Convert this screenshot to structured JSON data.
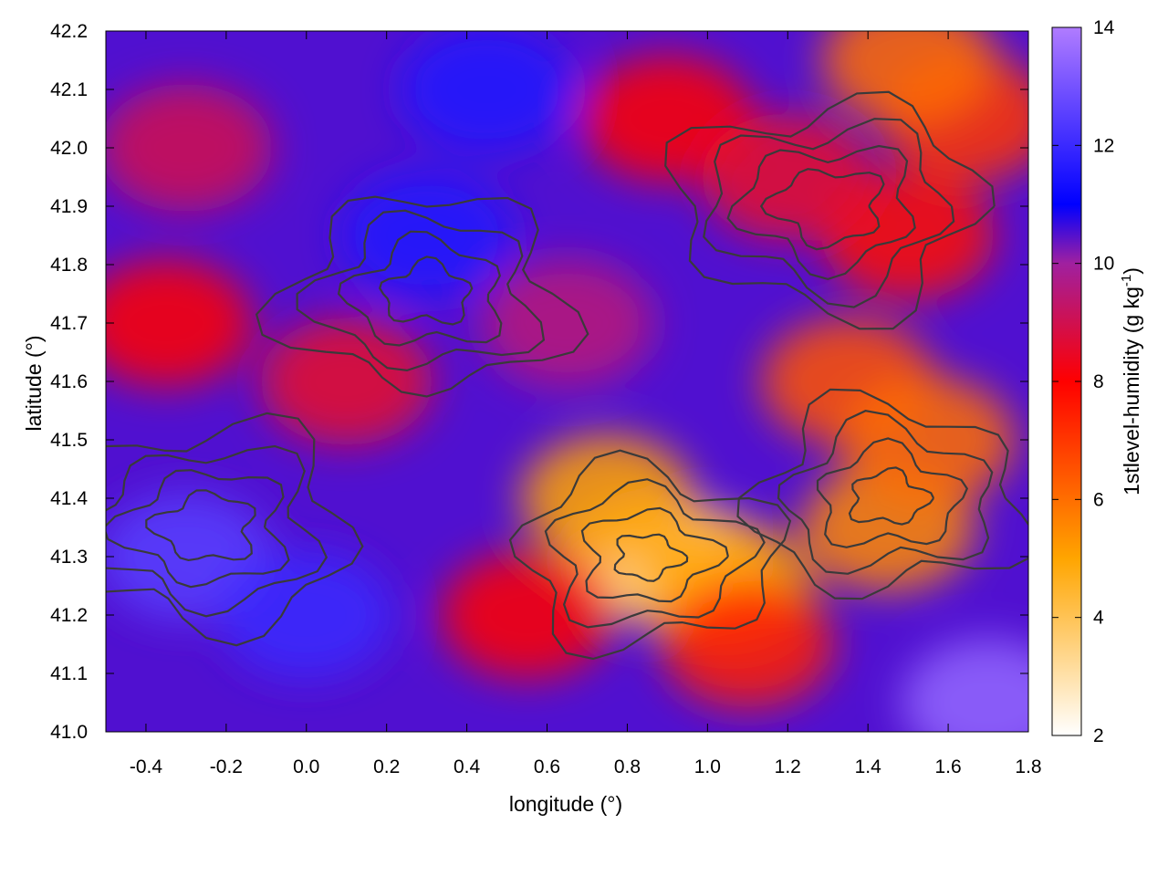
{
  "chart_data": {
    "type": "heatmap",
    "title": "",
    "xlabel": "longitude (°)",
    "ylabel": "latitude (°)",
    "xlim": [
      -0.5,
      1.8
    ],
    "ylim": [
      41.0,
      42.2
    ],
    "xticks": [
      -0.4,
      -0.2,
      0.0,
      0.2,
      0.4,
      0.6,
      0.8,
      1.0,
      1.2,
      1.4,
      1.6,
      1.8
    ],
    "xtick_labels": [
      "-0.4",
      "-0.2",
      "0.0",
      "0.2",
      "0.4",
      "0.6",
      "0.8",
      "1.0",
      "1.2",
      "1.4",
      "1.6",
      "1.8"
    ],
    "yticks": [
      41.0,
      41.1,
      41.2,
      41.3,
      41.4,
      41.5,
      41.6,
      41.7,
      41.8,
      41.9,
      42.0,
      42.1,
      42.2
    ],
    "ytick_labels": [
      "41.0",
      "41.1",
      "41.2",
      "41.3",
      "41.4",
      "41.5",
      "41.6",
      "41.7",
      "41.8",
      "41.9",
      "42.0",
      "42.1",
      "42.2"
    ],
    "colorbar": {
      "label": "1stlevel-humidity (g kg",
      "label_superscript": "-1",
      "label_suffix": ")",
      "range": [
        2,
        14
      ],
      "ticks": [
        2,
        4,
        6,
        8,
        10,
        12,
        14
      ],
      "tick_labels": [
        "2",
        "4",
        "6",
        "8",
        "10",
        "12",
        "14"
      ],
      "colormap": [
        {
          "value": 2,
          "color": "#ffffff"
        },
        {
          "value": 5,
          "color": "#ffa500"
        },
        {
          "value": 8,
          "color": "#ff0000"
        },
        {
          "value": 10,
          "color": "#a020a0"
        },
        {
          "value": 11,
          "color": "#0000ff"
        },
        {
          "value": 14,
          "color": "#b07cff"
        }
      ]
    },
    "contour_color": "#3a3a3a",
    "field_regions": [
      {
        "name": "background",
        "lon": 0.65,
        "lat": 41.6,
        "value": 10.5
      },
      {
        "lon": 0.85,
        "lat": 41.3,
        "value": 4
      },
      {
        "lon": 0.95,
        "lat": 41.28,
        "value": 3.5
      },
      {
        "lon": 0.75,
        "lat": 41.4,
        "value": 5
      },
      {
        "lon": 1.05,
        "lat": 41.25,
        "value": 5
      },
      {
        "lon": 1.45,
        "lat": 41.35,
        "value": 5.5
      },
      {
        "lon": 1.35,
        "lat": 41.6,
        "value": 6.5
      },
      {
        "lon": 1.55,
        "lat": 41.5,
        "value": 6
      },
      {
        "lon": 1.1,
        "lat": 41.15,
        "value": 7.5
      },
      {
        "lon": 0.55,
        "lat": 41.2,
        "value": 8
      },
      {
        "lon": 1.5,
        "lat": 41.85,
        "value": 7.8
      },
      {
        "lon": 1.65,
        "lat": 42.05,
        "value": 7
      },
      {
        "lon": 1.5,
        "lat": 42.15,
        "value": 6
      },
      {
        "lon": 0.9,
        "lat": 42.05,
        "value": 8
      },
      {
        "lon": -0.35,
        "lat": 41.7,
        "value": 8
      },
      {
        "lon": 0.1,
        "lat": 41.6,
        "value": 8.5
      },
      {
        "lon": -0.3,
        "lat": 42.0,
        "value": 9
      },
      {
        "lon": 0.3,
        "lat": 41.85,
        "value": 11.5
      },
      {
        "lon": 0.45,
        "lat": 42.1,
        "value": 11.5
      },
      {
        "lon": -0.3,
        "lat": 41.3,
        "value": 12.5
      },
      {
        "lon": 0.0,
        "lat": 41.2,
        "value": 12
      },
      {
        "lon": 1.7,
        "lat": 41.05,
        "value": 13.5
      },
      {
        "lon": 0.65,
        "lat": 41.7,
        "value": 9.5
      },
      {
        "lon": 1.2,
        "lat": 41.95,
        "value": 8.5
      }
    ]
  }
}
